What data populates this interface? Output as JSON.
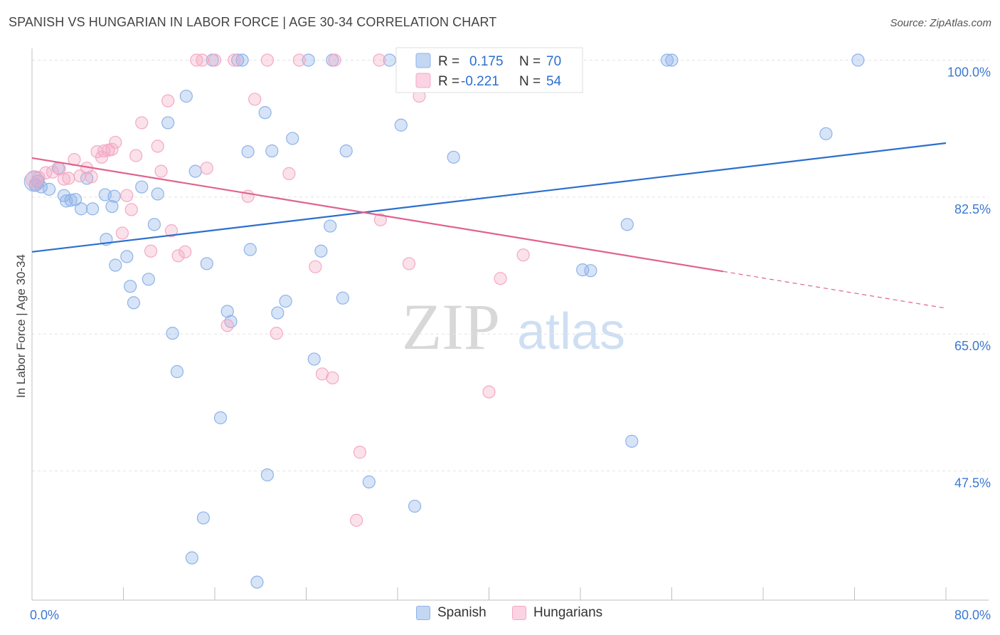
{
  "header": {
    "title": "SPANISH VS HUNGARIAN IN LABOR FORCE | AGE 30-34 CORRELATION CHART",
    "source": "Source: ZipAtlas.com"
  },
  "watermark": {
    "zip": "ZIP",
    "atlas": "atlas"
  },
  "chart_data": {
    "type": "scatter",
    "title": "SPANISH VS HUNGARIAN IN LABOR FORCE | AGE 30-34 CORRELATION CHART",
    "ylabel": "In Labor Force | Age 30-34",
    "xlabel": "",
    "xlim": [
      0,
      80
    ],
    "ylim": [
      31,
      101.5
    ],
    "x_tick_labels": [
      {
        "value": 0,
        "label": "0.0%"
      },
      {
        "value": 80,
        "label": "80.0%"
      }
    ],
    "y_tick_labels": [
      {
        "value": 100,
        "label": "100.0%"
      },
      {
        "value": 82.5,
        "label": "82.5%"
      },
      {
        "value": 65,
        "label": "65.0%"
      },
      {
        "value": 47.5,
        "label": "47.5%"
      }
    ],
    "grid": true,
    "legend_position": "top-center",
    "series": [
      {
        "name": "Spanish",
        "color": "#8db3e8",
        "line_color": "#2b6fce",
        "r_label": "R =",
        "r_value": "0.175",
        "n_label": "N =",
        "n_value": "70",
        "trend": {
          "x": [
            0,
            80
          ],
          "y": [
            75.5,
            89.4
          ]
        },
        "points": [
          [
            0.5,
            84.5
          ],
          [
            0.8,
            83.8
          ],
          [
            1.5,
            83.5
          ],
          [
            2.3,
            86.2
          ],
          [
            2.8,
            82.7
          ],
          [
            3.4,
            82.1
          ],
          [
            3.8,
            82.2
          ],
          [
            4.8,
            84.9
          ],
          [
            4.3,
            81.0
          ],
          [
            5.3,
            81.0
          ],
          [
            6.4,
            82.8
          ],
          [
            6.5,
            77.1
          ],
          [
            7.0,
            81.3
          ],
          [
            7.2,
            82.6
          ],
          [
            7.3,
            73.8
          ],
          [
            8.3,
            74.9
          ],
          [
            8.6,
            71.1
          ],
          [
            8.9,
            69.0
          ],
          [
            9.6,
            83.8
          ],
          [
            10.2,
            72.0
          ],
          [
            10.7,
            79.0
          ],
          [
            11.0,
            82.9
          ],
          [
            11.9,
            92.0
          ],
          [
            12.3,
            65.1
          ],
          [
            12.7,
            60.2
          ],
          [
            13.5,
            95.4
          ],
          [
            14.0,
            36.4
          ],
          [
            14.3,
            85.8
          ],
          [
            15.0,
            41.5
          ],
          [
            15.3,
            74.0
          ],
          [
            15.8,
            100.0
          ],
          [
            16.5,
            54.3
          ],
          [
            17.1,
            67.9
          ],
          [
            17.4,
            66.6
          ],
          [
            18.0,
            100.0
          ],
          [
            18.4,
            100.0
          ],
          [
            18.9,
            88.3
          ],
          [
            19.1,
            75.8
          ],
          [
            19.7,
            33.3
          ],
          [
            20.4,
            93.3
          ],
          [
            20.6,
            47.0
          ],
          [
            21.0,
            88.4
          ],
          [
            21.5,
            67.7
          ],
          [
            22.2,
            69.2
          ],
          [
            22.8,
            90.0
          ],
          [
            24.2,
            100.0
          ],
          [
            24.7,
            61.8
          ],
          [
            25.3,
            75.6
          ],
          [
            26.1,
            78.8
          ],
          [
            26.3,
            100.0
          ],
          [
            27.2,
            69.6
          ],
          [
            27.5,
            88.4
          ],
          [
            29.5,
            46.1
          ],
          [
            31.3,
            100.0
          ],
          [
            32.3,
            91.7
          ],
          [
            33.5,
            43.0
          ],
          [
            34.8,
            100.0
          ],
          [
            36.9,
            87.6
          ],
          [
            42.5,
            100.0
          ],
          [
            46.0,
            100.0
          ],
          [
            48.2,
            73.2
          ],
          [
            48.9,
            73.1
          ],
          [
            52.1,
            79.0
          ],
          [
            52.5,
            51.3
          ],
          [
            55.6,
            100.0
          ],
          [
            56.0,
            100.0
          ],
          [
            72.3,
            100.0
          ],
          [
            69.5,
            90.6
          ],
          [
            3.0,
            82.0
          ],
          [
            0.3,
            84.0
          ]
        ]
      },
      {
        "name": "Hungarians",
        "color": "#f4a9c4",
        "line_color": "#e0628e",
        "r_label": "R =",
        "r_value": "-0.221",
        "n_label": "N =",
        "n_value": "54",
        "trend": {
          "x": [
            0,
            60.5
          ],
          "y": [
            87.5,
            73.0
          ]
        },
        "trend_dashed": {
          "x": [
            60.5,
            80
          ],
          "y": [
            73.0,
            68.3
          ]
        },
        "points": [
          [
            0.3,
            84.2
          ],
          [
            0.6,
            85.0
          ],
          [
            1.2,
            85.6
          ],
          [
            1.8,
            85.7
          ],
          [
            2.4,
            86.1
          ],
          [
            2.8,
            84.8
          ],
          [
            3.2,
            84.9
          ],
          [
            3.7,
            87.3
          ],
          [
            4.2,
            85.2
          ],
          [
            4.8,
            86.2
          ],
          [
            5.2,
            85.1
          ],
          [
            6.1,
            87.6
          ],
          [
            5.7,
            88.3
          ],
          [
            6.3,
            88.4
          ],
          [
            6.7,
            88.5
          ],
          [
            7.0,
            88.6
          ],
          [
            7.3,
            89.5
          ],
          [
            7.9,
            77.9
          ],
          [
            8.3,
            82.7
          ],
          [
            8.7,
            80.9
          ],
          [
            9.1,
            87.8
          ],
          [
            9.6,
            92.0
          ],
          [
            10.4,
            75.6
          ],
          [
            11.0,
            89.0
          ],
          [
            11.3,
            85.8
          ],
          [
            11.9,
            94.8
          ],
          [
            12.2,
            78.2
          ],
          [
            12.8,
            75.0
          ],
          [
            13.4,
            75.5
          ],
          [
            14.4,
            100.0
          ],
          [
            14.9,
            100.0
          ],
          [
            15.3,
            86.2
          ],
          [
            16.0,
            100.0
          ],
          [
            17.1,
            66.1
          ],
          [
            17.7,
            100.0
          ],
          [
            18.9,
            82.6
          ],
          [
            19.5,
            95.0
          ],
          [
            20.6,
            100.0
          ],
          [
            21.4,
            65.1
          ],
          [
            22.5,
            85.5
          ],
          [
            23.4,
            100.0
          ],
          [
            24.8,
            73.6
          ],
          [
            25.4,
            59.9
          ],
          [
            26.3,
            59.4
          ],
          [
            26.5,
            100.0
          ],
          [
            28.7,
            49.9
          ],
          [
            28.4,
            41.2
          ],
          [
            30.5,
            79.6
          ],
          [
            30.4,
            100.0
          ],
          [
            33.0,
            74.0
          ],
          [
            33.9,
            95.4
          ],
          [
            40.0,
            57.6
          ],
          [
            41.0,
            72.1
          ],
          [
            43.0,
            75.1
          ]
        ]
      }
    ]
  }
}
